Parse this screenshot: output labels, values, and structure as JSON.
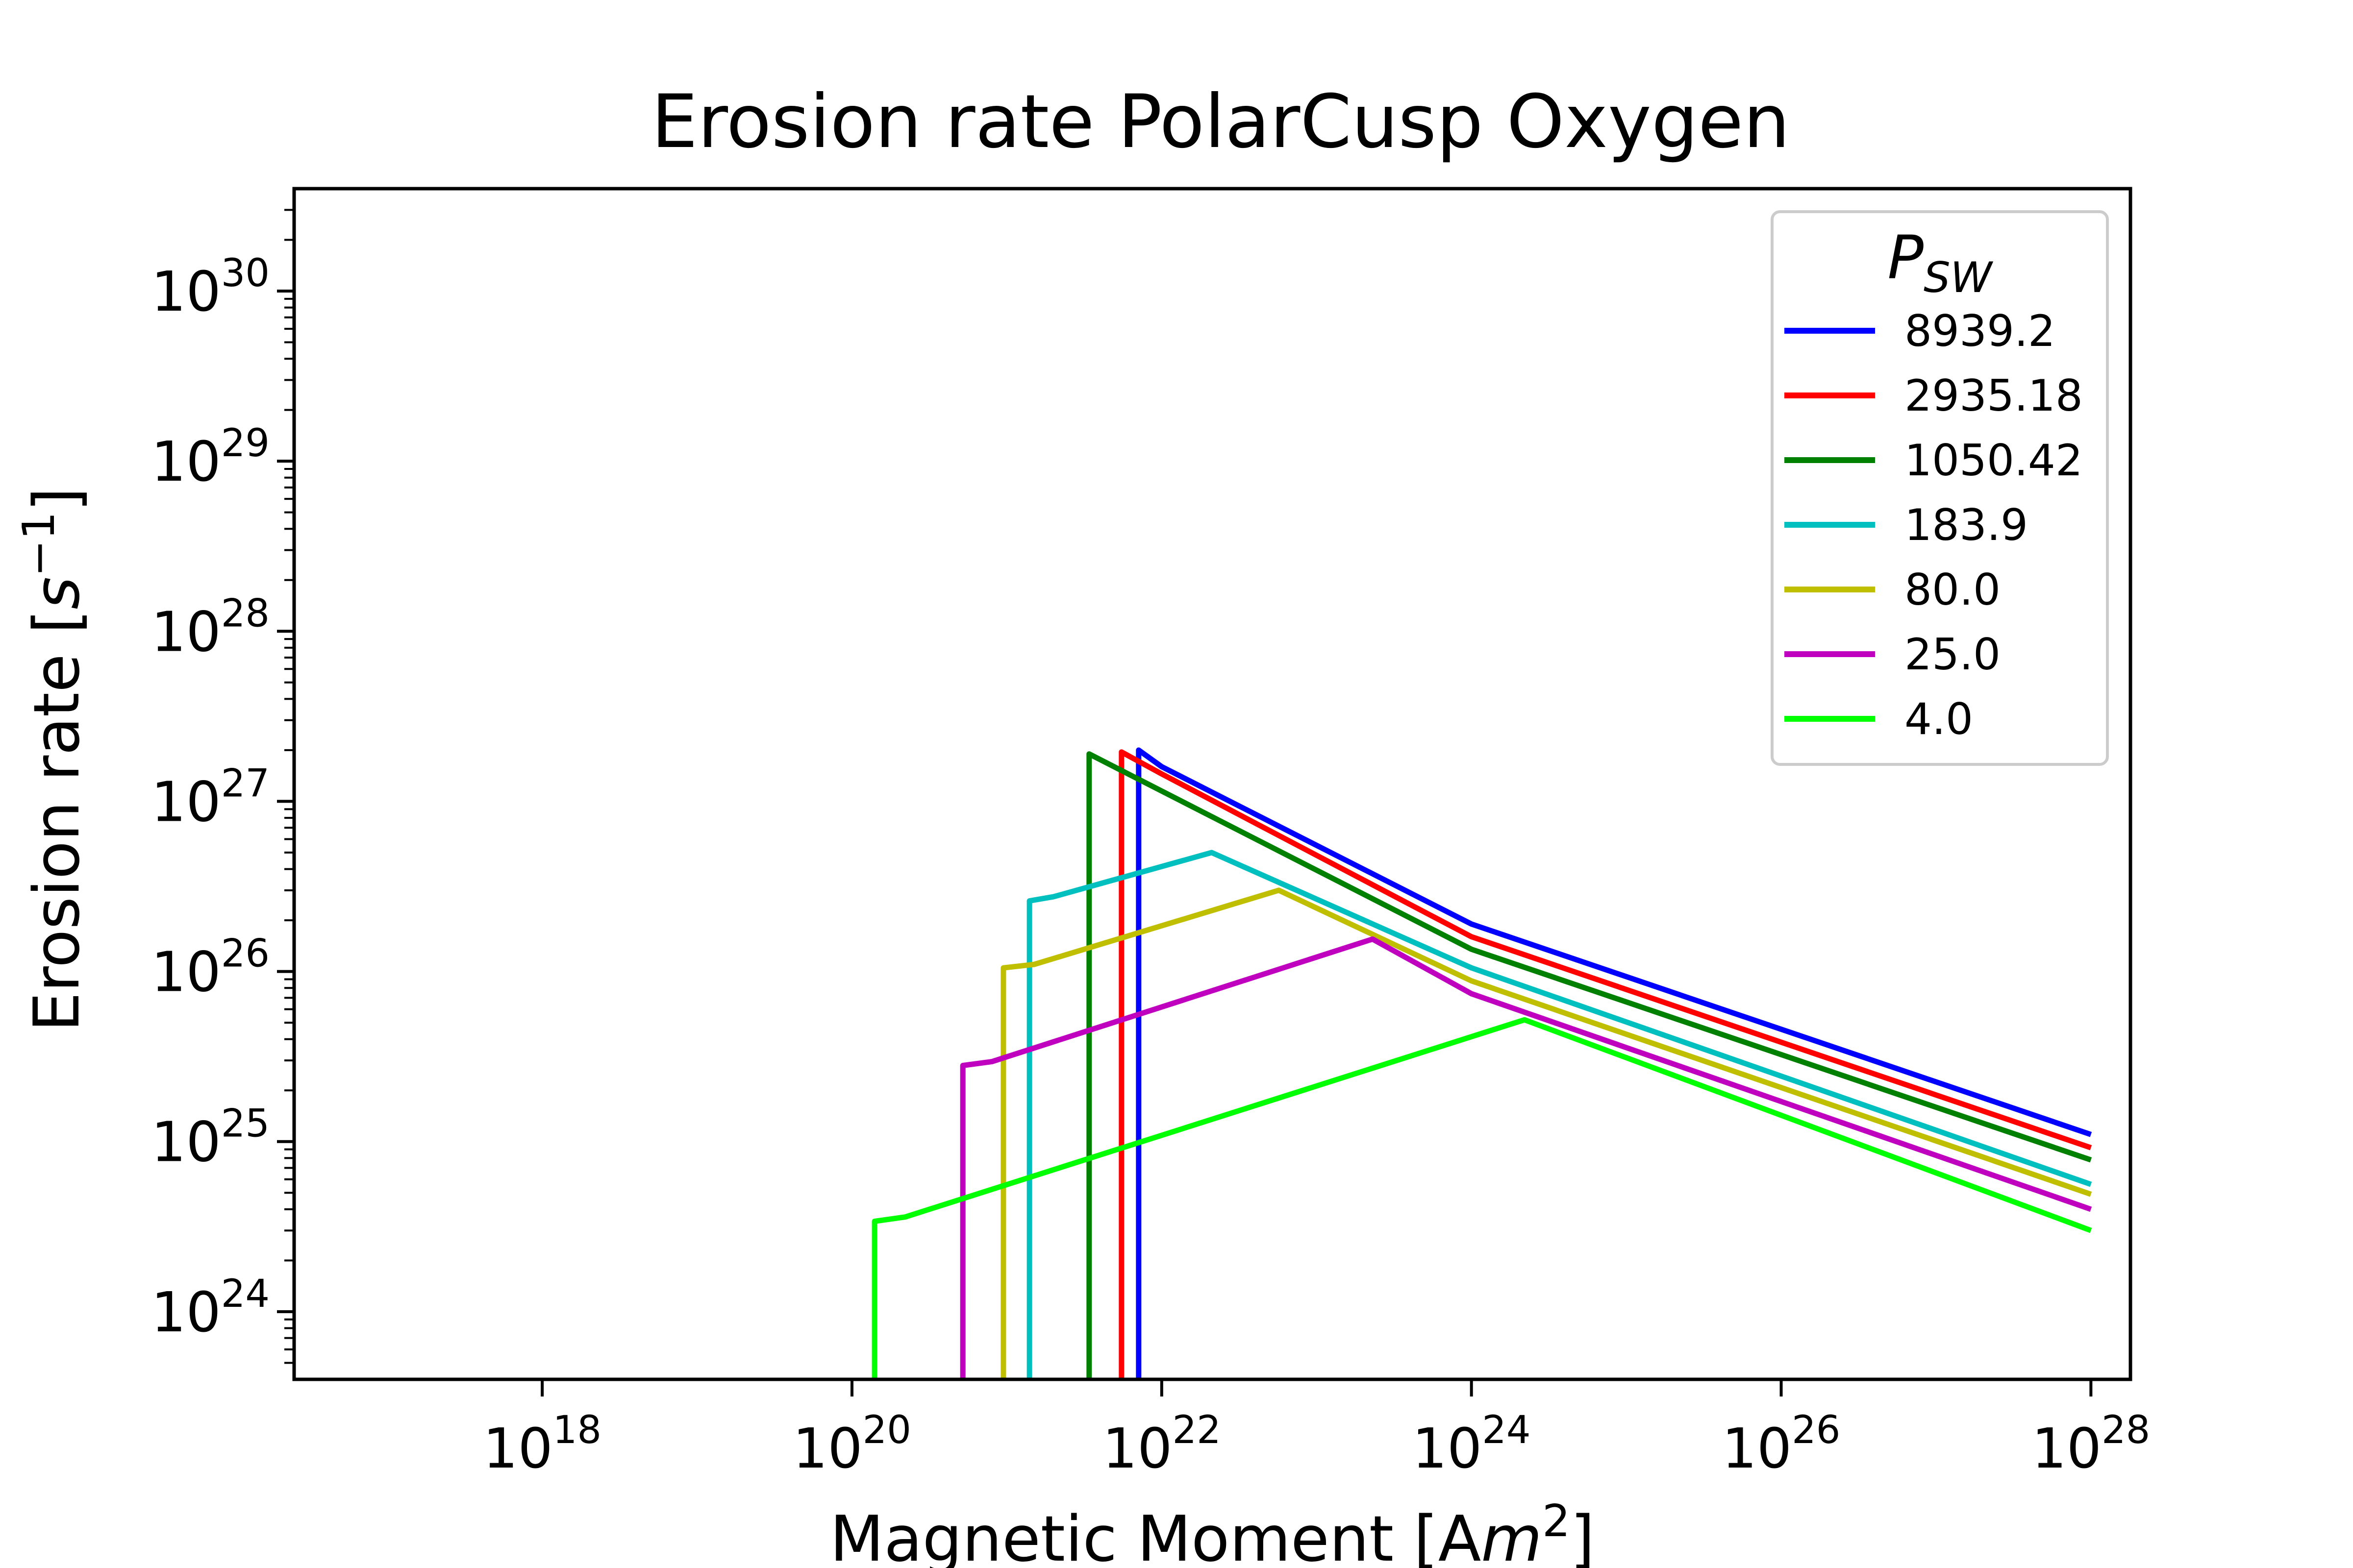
{
  "chart_data": {
    "type": "line",
    "title": "Erosion rate PolarCusp Oxygen",
    "xlabel": {
      "prefix": "Magnetic Moment [A",
      "italic": "m",
      "sup": "2",
      "suffix": "]"
    },
    "ylabel": {
      "prefix": "Erosion rate [",
      "italic": "s",
      "sup": "−1",
      "suffix": "]"
    },
    "x_scale": "log",
    "y_scale": "log",
    "xlim": [
      2.5e+16,
      1.8e+28
    ],
    "ylim": [
      4e+23,
      4e+30
    ],
    "x_ticks": [
      {
        "base": "10",
        "exp": "18",
        "value": 1e+18
      },
      {
        "base": "10",
        "exp": "20",
        "value": 1e+20
      },
      {
        "base": "10",
        "exp": "22",
        "value": 1e+22
      },
      {
        "base": "10",
        "exp": "24",
        "value": 1e+24
      },
      {
        "base": "10",
        "exp": "26",
        "value": 1e+26
      },
      {
        "base": "10",
        "exp": "28",
        "value": 1e+28
      }
    ],
    "y_ticks": [
      {
        "base": "10",
        "exp": "24",
        "value": 1e+24
      },
      {
        "base": "10",
        "exp": "25",
        "value": 1e+25
      },
      {
        "base": "10",
        "exp": "26",
        "value": 1e+26
      },
      {
        "base": "10",
        "exp": "27",
        "value": 1e+27
      },
      {
        "base": "10",
        "exp": "28",
        "value": 1e+28
      },
      {
        "base": "10",
        "exp": "29",
        "value": 1e+29
      },
      {
        "base": "10",
        "exp": "30",
        "value": 1e+30
      }
    ],
    "grid": false,
    "legend": {
      "position": "top-right",
      "title_base": "P",
      "title_sub": "SW"
    },
    "series": [
      {
        "name": "8939.2",
        "color": "#0000ff",
        "points": [
          [
            7.1e+21,
            4e+23
          ],
          [
            7.1e+21,
            2e+27
          ],
          [
            1e+22,
            1.6e+27
          ],
          [
            1e+24,
            1.9e+26
          ],
          [
            1e+28,
            1.1e+25
          ]
        ]
      },
      {
        "name": "2935.18",
        "color": "#ff0000",
        "points": [
          [
            5.5e+21,
            4e+23
          ],
          [
            5.5e+21,
            1.95e+27
          ],
          [
            1e+22,
            1.45e+27
          ],
          [
            1e+24,
            1.6e+26
          ],
          [
            1e+28,
            9.2e+24
          ]
        ]
      },
      {
        "name": "1050.42",
        "color": "#008000",
        "points": [
          [
            3.4e+21,
            4e+23
          ],
          [
            3.4e+21,
            1.9e+27
          ],
          [
            1e+22,
            1.15e+27
          ],
          [
            1e+24,
            1.35e+26
          ],
          [
            1e+28,
            7.8e+24
          ]
        ]
      },
      {
        "name": "183.9",
        "color": "#00bfbf",
        "points": [
          [
            1.4e+21,
            4e+23
          ],
          [
            1.4e+21,
            2.6e+26
          ],
          [
            2e+21,
            2.75e+26
          ],
          [
            2.1e+22,
            5e+26
          ],
          [
            1e+24,
            1.05e+26
          ],
          [
            1e+28,
            5.6e+24
          ]
        ]
      },
      {
        "name": "80.0",
        "color": "#bfbf00",
        "points": [
          [
            9.5e+20,
            4e+23
          ],
          [
            9.5e+20,
            1.05e+26
          ],
          [
            1.5e+21,
            1.1e+26
          ],
          [
            5.7e+22,
            3e+26
          ],
          [
            1e+24,
            8.8e+25
          ],
          [
            1e+28,
            4.9e+24
          ]
        ]
      },
      {
        "name": "25.0",
        "color": "#bf00bf",
        "points": [
          [
            5.2e+20,
            4e+23
          ],
          [
            5.2e+20,
            2.8e+25
          ],
          [
            8e+20,
            2.95e+25
          ],
          [
            2.3e+23,
            1.55e+26
          ],
          [
            1e+24,
            7.4e+25
          ],
          [
            1e+28,
            4e+24
          ]
        ]
      },
      {
        "name": "4.0",
        "color": "#00ff00",
        "points": [
          [
            1.4e+20,
            4e+23
          ],
          [
            1.4e+20,
            3.4e+24
          ],
          [
            2.2e+20,
            3.6e+24
          ],
          [
            2.2e+24,
            5.2e+25
          ],
          [
            1e+28,
            3e+24
          ]
        ]
      }
    ]
  }
}
